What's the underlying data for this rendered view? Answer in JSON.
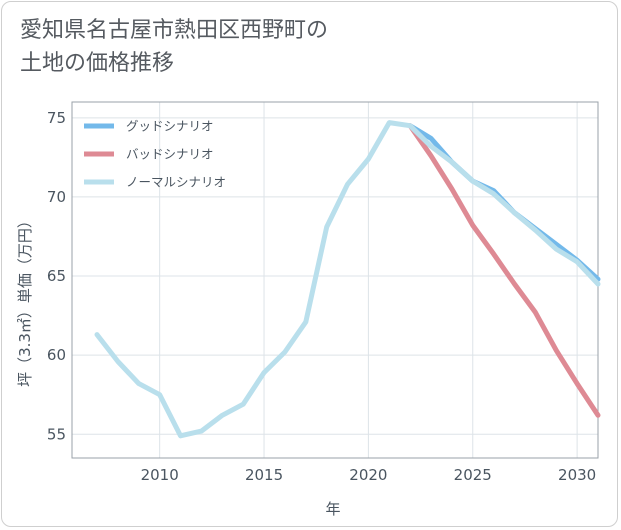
{
  "chart_data": {
    "type": "line",
    "title": "愛知県名古屋市熱田区西野町の\n土地の価格推移",
    "xlabel": "年",
    "ylabel": "坪（3.3㎡）単価（万円）",
    "xlim": [
      2005.8,
      2031
    ],
    "ylim": [
      53.5,
      76
    ],
    "xticks": [
      2010,
      2015,
      2020,
      2025,
      2030
    ],
    "yticks": [
      55,
      60,
      65,
      70,
      75
    ],
    "grid": true,
    "legend_position": "top-left",
    "series": [
      {
        "name": "グッドシナリオ",
        "color": "#73b9ea",
        "x": [
          2022,
          2023,
          2024,
          2025,
          2026,
          2027,
          2028,
          2029,
          2030,
          2031
        ],
        "y": [
          74.5,
          73.7,
          72.2,
          71.0,
          70.4,
          69.0,
          68.0,
          67.0,
          66.0,
          64.8
        ]
      },
      {
        "name": "バッドシナリオ",
        "color": "#de8a94",
        "x": [
          2022,
          2023,
          2024,
          2025,
          2026,
          2027,
          2028,
          2029,
          2030,
          2031
        ],
        "y": [
          74.5,
          72.6,
          70.5,
          68.2,
          66.4,
          64.5,
          62.7,
          60.3,
          58.2,
          56.2
        ]
      },
      {
        "name": "ノーマルシナリオ",
        "color": "#b9dfec",
        "x": [
          2007,
          2008,
          2009,
          2010,
          2011,
          2012,
          2013,
          2014,
          2015,
          2016,
          2017,
          2018,
          2019,
          2020,
          2021,
          2022,
          2023,
          2024,
          2025,
          2026,
          2027,
          2028,
          2029,
          2030,
          2031
        ],
        "y": [
          61.3,
          59.6,
          58.2,
          57.5,
          54.9,
          55.2,
          56.2,
          56.9,
          58.9,
          60.2,
          62.1,
          68.1,
          70.8,
          72.4,
          74.7,
          74.5,
          73.2,
          72.2,
          71.0,
          70.2,
          69.0,
          67.9,
          66.7,
          65.9,
          64.5
        ]
      }
    ]
  }
}
